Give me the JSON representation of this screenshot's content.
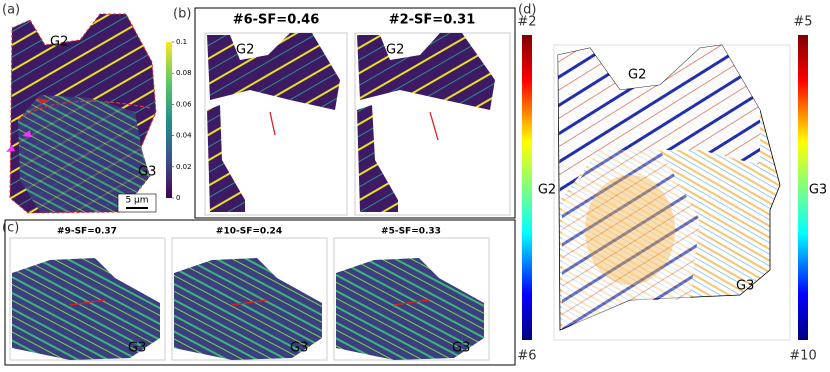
{
  "panel_a": {
    "label": "(a)",
    "grain_top": "G2",
    "grain_bottom": "G3",
    "scale_bar": "5 μm",
    "colorbar": {
      "lim": [
        0,
        0.1
      ],
      "ticks": [
        0,
        0.02,
        0.04,
        0.06,
        0.08,
        0.1
      ]
    }
  },
  "panel_b": {
    "label": "(b)",
    "maps": [
      {
        "title": "#6-SF=0.46",
        "grain": "G2"
      },
      {
        "title": "#2-SF=0.31",
        "grain": "G2"
      }
    ]
  },
  "panel_c": {
    "label": "(c)",
    "maps": [
      {
        "title": "#9-SF=0.37",
        "grain": "G3"
      },
      {
        "title": "#10-SF=0.24",
        "grain": "G3"
      },
      {
        "title": "#5-SF=0.33",
        "grain": "G3"
      }
    ]
  },
  "panel_d": {
    "label": "(d)",
    "left_bar_top": "#2",
    "left_bar_bottom": "#6",
    "left_bar_mid": "G2",
    "right_bar_top": "#5",
    "right_bar_bottom": "#10",
    "right_bar_mid": "G3",
    "grain_top": "G2",
    "grain_bottom": "G3"
  }
}
